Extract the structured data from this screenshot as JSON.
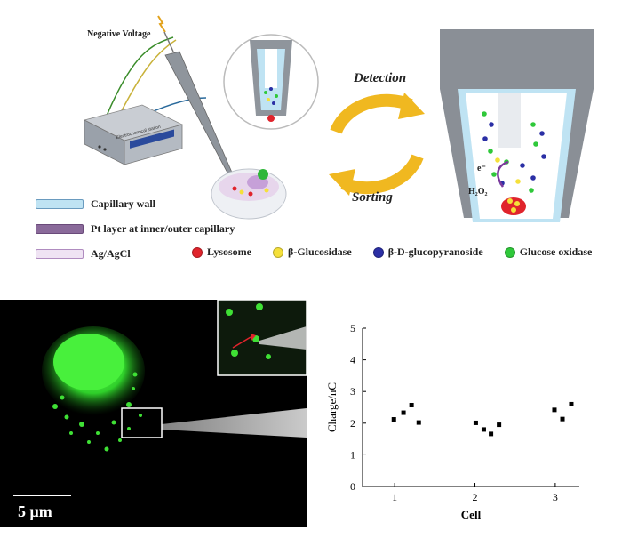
{
  "schematic": {
    "negative_voltage": "Negative Voltage",
    "instrument_label": "Electrochemical station",
    "detection": "Detection",
    "sorting": "Sorting",
    "electron_label": "e⁻",
    "h2o2_label": "H₂O₂",
    "legend_left": [
      {
        "label": "Capillary wall",
        "color": "#bfe3f3"
      },
      {
        "label": "Pt layer at  inner/outer capillary",
        "color": "#8a6a9a"
      },
      {
        "label": "Ag/AgCl",
        "color": "#efe3f3"
      }
    ],
    "legend_molecules": [
      {
        "label": "Lysosome",
        "color": "#e0242c"
      },
      {
        "label": "β-Glucosidase",
        "color": "#f5e03a"
      },
      {
        "label": "β-D-glucopyranoside",
        "color": "#2b2fa5"
      },
      {
        "label": "Glucose oxidase",
        "color": "#2fc83a"
      }
    ]
  },
  "micrograph": {
    "scale_bar_label": "5 μm"
  },
  "chart_data": {
    "type": "scatter",
    "xlabel": "Cell",
    "ylabel": "Charge/nC",
    "xlim": [
      0.6,
      3.3
    ],
    "ylim": [
      0,
      5
    ],
    "xticks": [
      1,
      2,
      3
    ],
    "yticks": [
      0,
      1,
      2,
      3,
      4,
      5
    ],
    "grid": false,
    "points": [
      {
        "x": 0.99,
        "y": 2.12
      },
      {
        "x": 1.11,
        "y": 2.33
      },
      {
        "x": 1.21,
        "y": 2.57
      },
      {
        "x": 1.3,
        "y": 2.02
      },
      {
        "x": 2.01,
        "y": 2.01
      },
      {
        "x": 2.11,
        "y": 1.8
      },
      {
        "x": 2.2,
        "y": 1.66
      },
      {
        "x": 2.3,
        "y": 1.95
      },
      {
        "x": 2.99,
        "y": 2.42
      },
      {
        "x": 3.09,
        "y": 2.13
      },
      {
        "x": 3.2,
        "y": 2.6
      }
    ]
  }
}
